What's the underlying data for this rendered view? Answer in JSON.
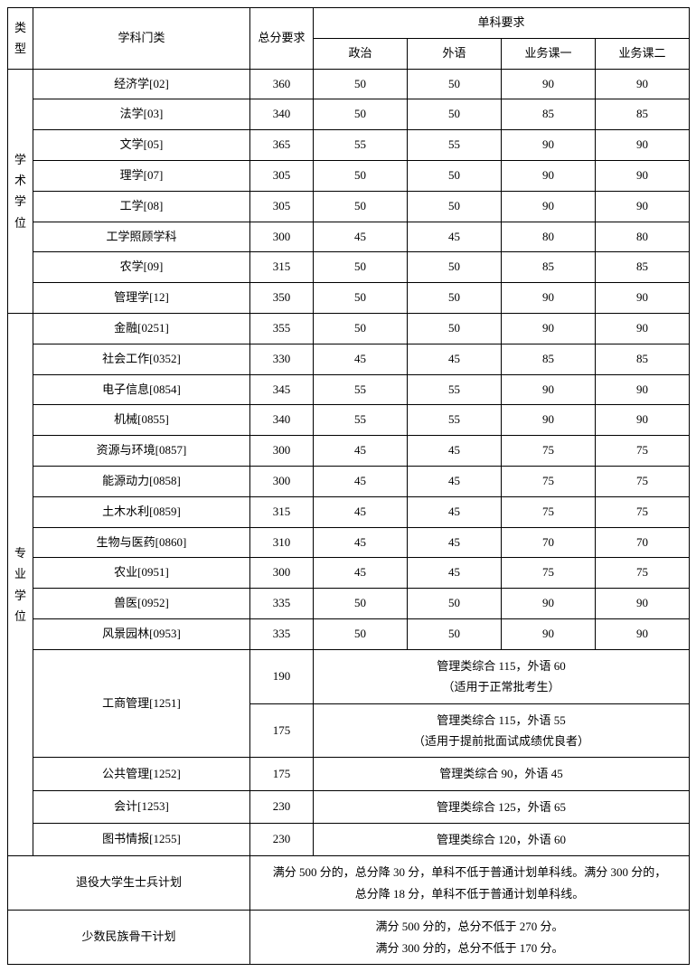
{
  "header": {
    "type": "类型",
    "subject": "学科门类",
    "total": "总分要求",
    "subjects_req": "单科要求",
    "politics": "政治",
    "foreign": "外语",
    "course1": "业务课一",
    "course2": "业务课二"
  },
  "academic": {
    "label": "学术学位",
    "rows": [
      {
        "name": "经济学[02]",
        "total": "360",
        "pol": "50",
        "for": "50",
        "c1": "90",
        "c2": "90"
      },
      {
        "name": "法学[03]",
        "total": "340",
        "pol": "50",
        "for": "50",
        "c1": "85",
        "c2": "85"
      },
      {
        "name": "文学[05]",
        "total": "365",
        "pol": "55",
        "for": "55",
        "c1": "90",
        "c2": "90"
      },
      {
        "name": "理学[07]",
        "total": "305",
        "pol": "50",
        "for": "50",
        "c1": "90",
        "c2": "90"
      },
      {
        "name": "工学[08]",
        "total": "305",
        "pol": "50",
        "for": "50",
        "c1": "90",
        "c2": "90"
      },
      {
        "name": "工学照顾学科",
        "total": "300",
        "pol": "45",
        "for": "45",
        "c1": "80",
        "c2": "80"
      },
      {
        "name": "农学[09]",
        "total": "315",
        "pol": "50",
        "for": "50",
        "c1": "85",
        "c2": "85"
      },
      {
        "name": "管理学[12]",
        "total": "350",
        "pol": "50",
        "for": "50",
        "c1": "90",
        "c2": "90"
      }
    ]
  },
  "professional": {
    "label": "专业学位",
    "rows": [
      {
        "name": "金融[0251]",
        "total": "355",
        "pol": "50",
        "for": "50",
        "c1": "90",
        "c2": "90"
      },
      {
        "name": "社会工作[0352]",
        "total": "330",
        "pol": "45",
        "for": "45",
        "c1": "85",
        "c2": "85"
      },
      {
        "name": "电子信息[0854]",
        "total": "345",
        "pol": "55",
        "for": "55",
        "c1": "90",
        "c2": "90"
      },
      {
        "name": "机械[0855]",
        "total": "340",
        "pol": "55",
        "for": "55",
        "c1": "90",
        "c2": "90"
      },
      {
        "name": "资源与环境[0857]",
        "total": "300",
        "pol": "45",
        "for": "45",
        "c1": "75",
        "c2": "75"
      },
      {
        "name": "能源动力[0858]",
        "total": "300",
        "pol": "45",
        "for": "45",
        "c1": "75",
        "c2": "75"
      },
      {
        "name": "土木水利[0859]",
        "total": "315",
        "pol": "45",
        "for": "45",
        "c1": "75",
        "c2": "75"
      },
      {
        "name": "生物与医药[0860]",
        "total": "310",
        "pol": "45",
        "for": "45",
        "c1": "70",
        "c2": "70"
      },
      {
        "name": "农业[0951]",
        "total": "300",
        "pol": "45",
        "for": "45",
        "c1": "75",
        "c2": "75"
      },
      {
        "name": "兽医[0952]",
        "total": "335",
        "pol": "50",
        "for": "50",
        "c1": "90",
        "c2": "90"
      },
      {
        "name": "风景园林[0953]",
        "total": "335",
        "pol": "50",
        "for": "50",
        "c1": "90",
        "c2": "90"
      }
    ],
    "mba": {
      "name": "工商管理[1251]",
      "row1": {
        "total": "190",
        "note": "管理类综合 115，外语 60\n（适用于正常批考生）"
      },
      "row2": {
        "total": "175",
        "note": "管理类综合 115，外语 55\n（适用于提前批面试成绩优良者）"
      }
    },
    "merged_rows": [
      {
        "name": "公共管理[1252]",
        "total": "175",
        "note": "管理类综合 90，外语 45"
      },
      {
        "name": "会计[1253]",
        "total": "230",
        "note": "管理类综合 125，外语 65"
      },
      {
        "name": "图书情报[1255]",
        "total": "230",
        "note": "管理类综合 120，外语 60"
      }
    ]
  },
  "plans": {
    "veteran": {
      "name": "退役大学生士兵计划",
      "note": "满分 500 分的，总分降 30 分，单科不低于普通计划单科线。满分 300 分的，\n总分降 18 分，单科不低于普通计划单科线。"
    },
    "minority": {
      "name": "少数民族骨干计划",
      "note": "满分 500 分的，总分不低于 270 分。\n满分 300 分的，总分不低于 170 分。"
    }
  }
}
